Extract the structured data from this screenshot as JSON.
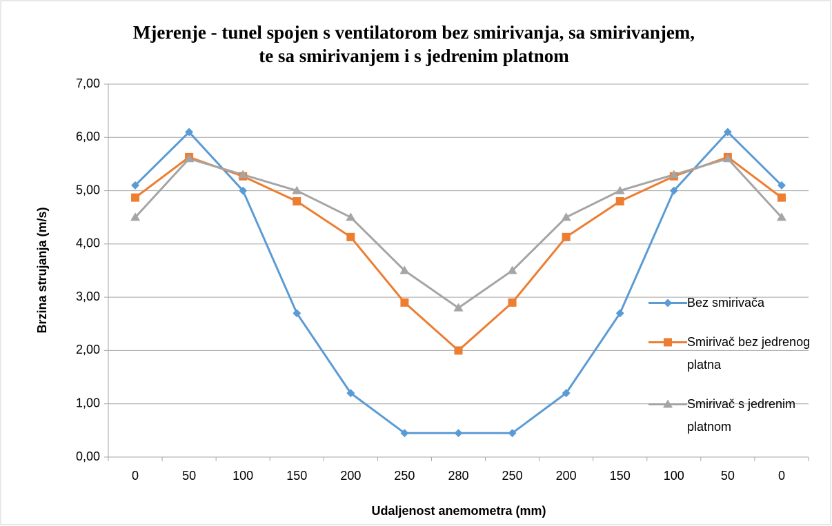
{
  "chart_data": {
    "type": "line",
    "title": "Mjerenje - tunel spojen s ventilatorom bez smirivanja, sa smirivanjem, te sa smirivanjem i s jedrenim platnom",
    "x_label": "Udaljenost anemometra (mm)",
    "y_label": "Brzina strujanja (m/s)",
    "categories": [
      "0",
      "50",
      "100",
      "150",
      "200",
      "250",
      "280",
      "250",
      "200",
      "150",
      "100",
      "50",
      "0"
    ],
    "series": [
      {
        "name": "Bez smirivača",
        "color": "#5b9bd5",
        "marker": "diamond",
        "values": [
          5.1,
          6.1,
          5.0,
          2.7,
          1.2,
          0.45,
          0.45,
          0.45,
          1.2,
          2.7,
          5.0,
          6.1,
          5.1
        ]
      },
      {
        "name": "Smirivač bez jedrenog platna",
        "color": "#ed7d31",
        "marker": "square",
        "values": [
          4.87,
          5.63,
          5.27,
          4.8,
          4.13,
          2.9,
          2.0,
          2.9,
          4.13,
          4.8,
          5.27,
          5.63,
          4.87
        ]
      },
      {
        "name": "Smirivač s jedrenim platnom",
        "color": "#a5a5a5",
        "marker": "triangle",
        "values": [
          4.5,
          5.6,
          5.3,
          5.0,
          4.5,
          3.5,
          2.8,
          3.5,
          4.5,
          5.0,
          5.3,
          5.6,
          4.5
        ]
      }
    ],
    "ylim": [
      0,
      7
    ],
    "yticks": [
      {
        "value": 0,
        "label": "0,00"
      },
      {
        "value": 1,
        "label": "1,00"
      },
      {
        "value": 2,
        "label": "2,00"
      },
      {
        "value": 3,
        "label": "3,00"
      },
      {
        "value": 4,
        "label": "4,00"
      },
      {
        "value": 5,
        "label": "5,00"
      },
      {
        "value": 6,
        "label": "6,00"
      },
      {
        "value": 7,
        "label": "7,00"
      }
    ],
    "grid": true,
    "legend": "right"
  }
}
